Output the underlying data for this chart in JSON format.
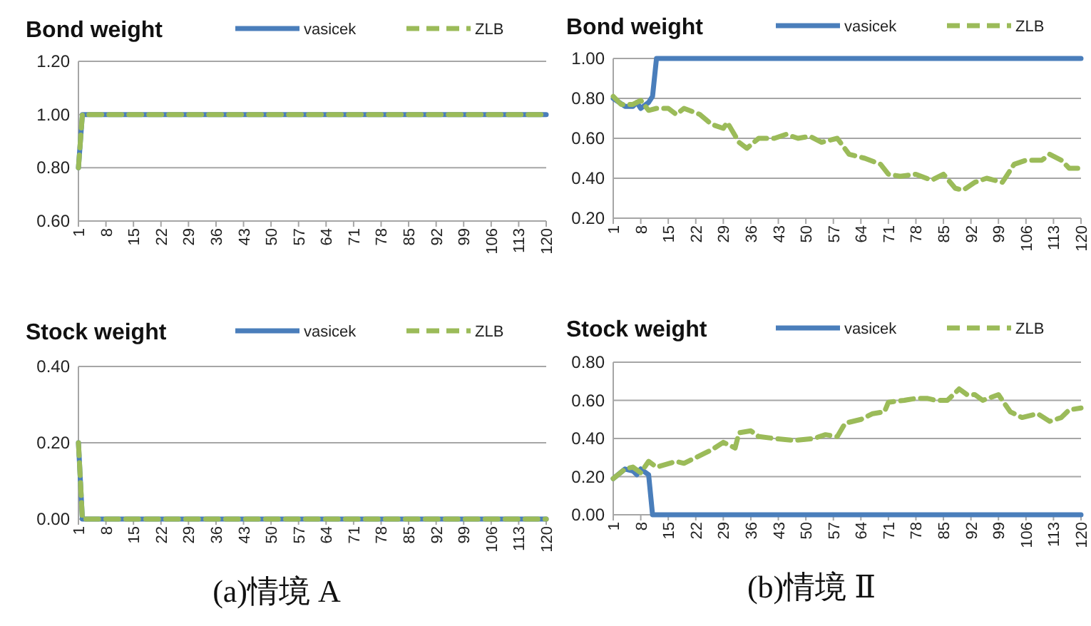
{
  "chart_data": [
    {
      "type": "line",
      "title": "Bond weight",
      "ylim": [
        0.6,
        1.2
      ],
      "yticks": [
        {
          "value": 0.6,
          "label": "0.60"
        },
        {
          "value": 0.8,
          "label": "0.80"
        },
        {
          "value": 1.0,
          "label": "1.00"
        },
        {
          "value": 1.2,
          "label": "1.20"
        }
      ],
      "xlim": [
        1,
        120
      ],
      "xticks": [
        1,
        8,
        15,
        22,
        29,
        36,
        43,
        50,
        57,
        64,
        71,
        78,
        85,
        92,
        99,
        106,
        113,
        120
      ],
      "grid": "y",
      "legend": "top",
      "series": [
        {
          "name": "vasicek",
          "color": "#4a7ebb",
          "line_style": "solid",
          "x": [
            1,
            2,
            120
          ],
          "values": [
            0.8,
            1.0,
            1.0
          ]
        },
        {
          "name": "ZLB",
          "color": "#9bbb59",
          "line_style": "dashed",
          "x": [
            1,
            2,
            120
          ],
          "values": [
            0.8,
            1.0,
            1.0
          ]
        }
      ]
    },
    {
      "type": "line",
      "title": "Stock weight",
      "ylim": [
        0,
        0.4
      ],
      "yticks": [
        {
          "value": 0,
          "label": "0.00"
        },
        {
          "value": 0.2,
          "label": "0.20"
        },
        {
          "value": 0.4,
          "label": "0.40"
        }
      ],
      "xlim": [
        1,
        120
      ],
      "xticks": [
        1,
        8,
        15,
        22,
        29,
        36,
        43,
        50,
        57,
        64,
        71,
        78,
        85,
        92,
        99,
        106,
        113,
        120
      ],
      "grid": "y",
      "legend": "top",
      "annotations": [
        "(a)情境 A"
      ],
      "series": [
        {
          "name": "vasicek",
          "color": "#4a7ebb",
          "line_style": "solid",
          "x": [
            1,
            2,
            120
          ],
          "values": [
            0.2,
            0,
            0
          ]
        },
        {
          "name": "ZLB",
          "color": "#9bbb59",
          "line_style": "dashed",
          "x": [
            1,
            2,
            120
          ],
          "values": [
            0.2,
            0,
            0
          ]
        }
      ]
    },
    {
      "type": "line",
      "title": "Bond weight",
      "ylim": [
        0.2,
        1.0
      ],
      "yticks": [
        {
          "value": 0.2,
          "label": "0.20"
        },
        {
          "value": 0.4,
          "label": "0.40"
        },
        {
          "value": 0.6,
          "label": "0.60"
        },
        {
          "value": 0.8,
          "label": "0.80"
        },
        {
          "value": 1.0,
          "label": "1.00"
        }
      ],
      "xlim": [
        1,
        120
      ],
      "xticks": [
        1,
        8,
        15,
        22,
        29,
        36,
        43,
        50,
        57,
        64,
        71,
        78,
        85,
        92,
        99,
        106,
        113,
        120
      ],
      "grid": "y",
      "legend": "top",
      "series": [
        {
          "name": "vasicek",
          "color": "#4a7ebb",
          "line_style": "solid",
          "x": [
            1,
            4,
            6,
            7,
            8,
            10,
            11,
            12,
            120
          ],
          "values": [
            0.8,
            0.76,
            0.76,
            0.78,
            0.75,
            0.78,
            0.81,
            1.0,
            1.0
          ]
        },
        {
          "name": "ZLB",
          "color": "#9bbb59",
          "line_style": "dashed",
          "x": [
            1,
            3,
            6,
            8,
            10,
            12,
            15,
            17,
            19,
            23,
            26,
            29,
            30,
            33,
            35,
            38,
            42,
            45,
            48,
            51,
            54,
            58,
            61,
            65,
            69,
            71,
            74,
            78,
            82,
            85,
            88,
            90,
            93,
            96,
            100,
            103,
            106,
            110,
            112,
            115,
            117,
            120
          ],
          "values": [
            0.81,
            0.77,
            0.77,
            0.79,
            0.74,
            0.75,
            0.75,
            0.72,
            0.75,
            0.72,
            0.67,
            0.65,
            0.68,
            0.58,
            0.55,
            0.6,
            0.6,
            0.62,
            0.6,
            0.61,
            0.58,
            0.6,
            0.52,
            0.5,
            0.47,
            0.42,
            0.41,
            0.42,
            0.39,
            0.42,
            0.35,
            0.34,
            0.38,
            0.4,
            0.38,
            0.47,
            0.49,
            0.49,
            0.52,
            0.49,
            0.45,
            0.45
          ]
        }
      ]
    },
    {
      "type": "line",
      "title": "Stock weight",
      "ylim": [
        0,
        0.8
      ],
      "yticks": [
        {
          "value": 0,
          "label": "0.00"
        },
        {
          "value": 0.2,
          "label": "0.20"
        },
        {
          "value": 0.4,
          "label": "0.40"
        },
        {
          "value": 0.6,
          "label": "0.60"
        },
        {
          "value": 0.8,
          "label": "0.80"
        }
      ],
      "xlim": [
        1,
        120
      ],
      "xticks": [
        1,
        8,
        15,
        22,
        29,
        36,
        43,
        50,
        57,
        64,
        71,
        78,
        85,
        92,
        99,
        106,
        113,
        120
      ],
      "grid": "y",
      "legend": "top",
      "annotations": [
        "(b)情境 Ⅱ"
      ],
      "series": [
        {
          "name": "vasicek",
          "color": "#4a7ebb",
          "line_style": "solid",
          "x": [
            1,
            4,
            6,
            7,
            8,
            10,
            11,
            120
          ],
          "values": [
            0.19,
            0.24,
            0.23,
            0.21,
            0.24,
            0.21,
            0,
            0
          ]
        },
        {
          "name": "ZLB",
          "color": "#9bbb59",
          "line_style": "dashed",
          "x": [
            1,
            4,
            6,
            8,
            10,
            12,
            17,
            19,
            21,
            24,
            26,
            29,
            32,
            33,
            36,
            38,
            42,
            47,
            52,
            55,
            58,
            60,
            64,
            67,
            70,
            71,
            75,
            78,
            81,
            83,
            86,
            89,
            91,
            93,
            95,
            99,
            102,
            105,
            109,
            112,
            115,
            117,
            120
          ],
          "values": [
            0.19,
            0.24,
            0.25,
            0.22,
            0.28,
            0.25,
            0.28,
            0.27,
            0.29,
            0.32,
            0.34,
            0.38,
            0.35,
            0.43,
            0.44,
            0.41,
            0.4,
            0.39,
            0.4,
            0.42,
            0.41,
            0.48,
            0.5,
            0.53,
            0.54,
            0.59,
            0.6,
            0.61,
            0.61,
            0.6,
            0.6,
            0.66,
            0.63,
            0.63,
            0.6,
            0.63,
            0.54,
            0.51,
            0.53,
            0.49,
            0.51,
            0.55,
            0.56
          ]
        }
      ]
    }
  ]
}
